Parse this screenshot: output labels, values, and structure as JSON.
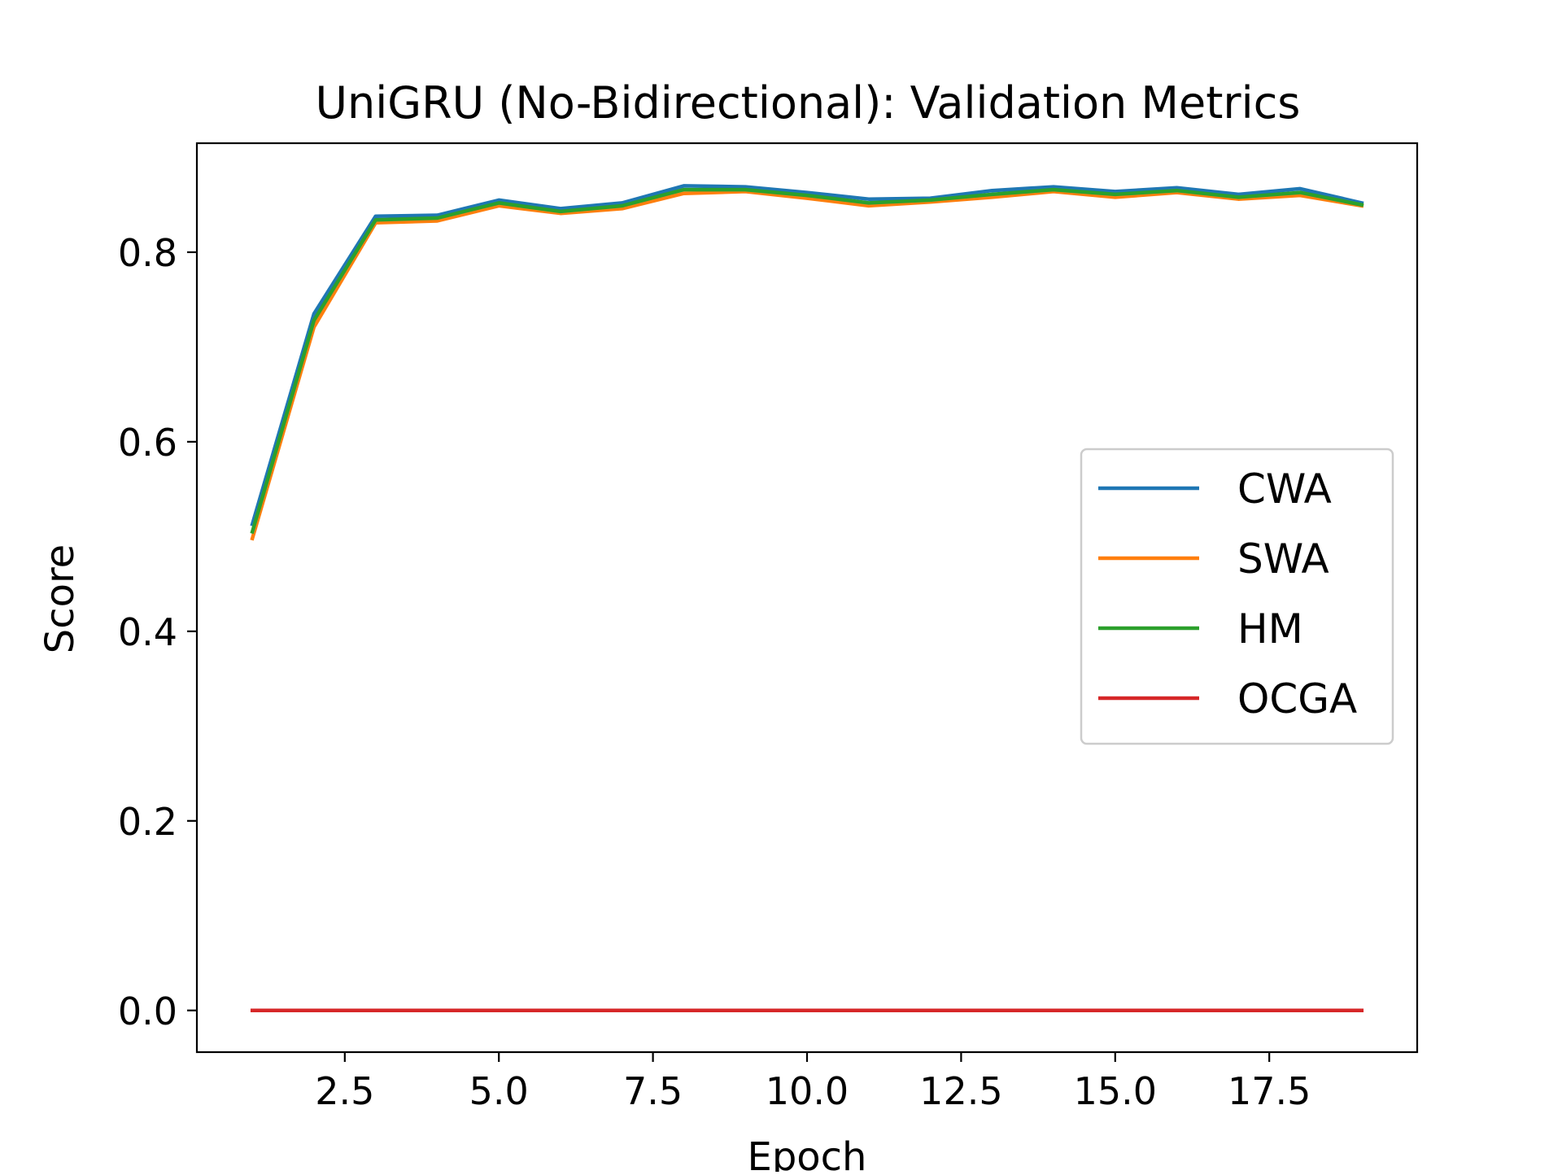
{
  "chart_data": {
    "type": "line",
    "title": "UniGRU (No-Bidirectional): Validation Metrics",
    "xlabel": "Epoch",
    "ylabel": "Score",
    "xlim": [
      0.1,
      19.9
    ],
    "ylim": [
      -0.044,
      0.915
    ],
    "x_ticks": [
      2.5,
      5.0,
      7.5,
      10.0,
      12.5,
      15.0,
      17.5
    ],
    "x_tick_labels": [
      "2.5",
      "5.0",
      "7.5",
      "10.0",
      "12.5",
      "15.0",
      "17.5"
    ],
    "y_ticks": [
      0.0,
      0.2,
      0.4,
      0.6,
      0.8
    ],
    "y_tick_labels": [
      "0.0",
      "0.2",
      "0.4",
      "0.6",
      "0.8"
    ],
    "grid": false,
    "legend_position": "center-right",
    "x": [
      1,
      2,
      3,
      4,
      5,
      6,
      7,
      8,
      9,
      10,
      11,
      12,
      13,
      14,
      15,
      16,
      17,
      18,
      19
    ],
    "series": [
      {
        "name": "CWA",
        "color": "#1f77b4",
        "values": [
          0.513,
          0.735,
          0.838,
          0.839,
          0.855,
          0.846,
          0.852,
          0.87,
          0.869,
          0.863,
          0.856,
          0.857,
          0.865,
          0.869,
          0.864,
          0.868,
          0.861,
          0.867,
          0.852
        ]
      },
      {
        "name": "SWA",
        "color": "#ff7f0e",
        "values": [
          0.498,
          0.721,
          0.831,
          0.833,
          0.849,
          0.841,
          0.846,
          0.862,
          0.864,
          0.857,
          0.849,
          0.853,
          0.858,
          0.864,
          0.858,
          0.863,
          0.856,
          0.86,
          0.849
        ]
      },
      {
        "name": "HM",
        "color": "#2ca02c",
        "values": [
          0.505,
          0.728,
          0.834,
          0.836,
          0.852,
          0.843,
          0.849,
          0.866,
          0.866,
          0.86,
          0.852,
          0.855,
          0.861,
          0.866,
          0.861,
          0.865,
          0.858,
          0.863,
          0.85
        ]
      },
      {
        "name": "OCGA",
        "color": "#d62728",
        "values": [
          0.0,
          0.0,
          0.0,
          0.0,
          0.0,
          0.0,
          0.0,
          0.0,
          0.0,
          0.0,
          0.0,
          0.0,
          0.0,
          0.0,
          0.0,
          0.0,
          0.0,
          0.0,
          0.0
        ]
      }
    ]
  }
}
